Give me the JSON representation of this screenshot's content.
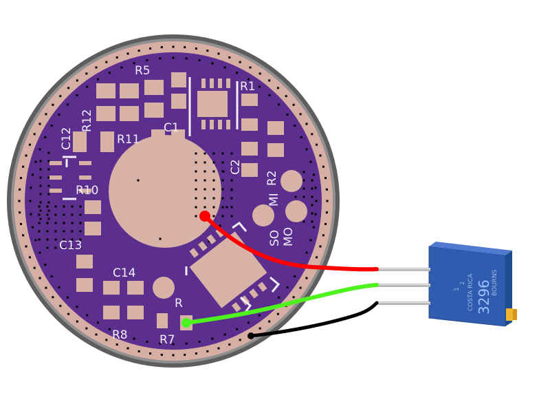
{
  "pcb": {
    "labels": {
      "r5": "R5",
      "r1": "R1",
      "r12": "R12",
      "c12": "C12",
      "r11": "R11",
      "c1": "C1",
      "c2": "C2",
      "r2": "R2",
      "mi": "MI",
      "r10": "R10",
      "so": "SO",
      "mo": "MO",
      "c13": "C13",
      "c14": "C14",
      "r": "R",
      "r8": "R8",
      "r7": "R7"
    }
  },
  "potentiometer": {
    "model": "3296",
    "brand": "BOURNS",
    "origin": "COSTA RICA",
    "value_code": "1",
    "small_code": "2"
  },
  "wires": {
    "colors": {
      "red": "#ff0000",
      "green": "#44ee22",
      "black": "#000000"
    }
  },
  "colors": {
    "board_outline": "#5c5c5c",
    "board_copper_ring": "#d6b0a6",
    "board_purple": "#5a2f8c",
    "pad_copper": "#d6b0a6",
    "pot_blue": "#2f5fb3",
    "pot_gold": "#d7a52a"
  }
}
